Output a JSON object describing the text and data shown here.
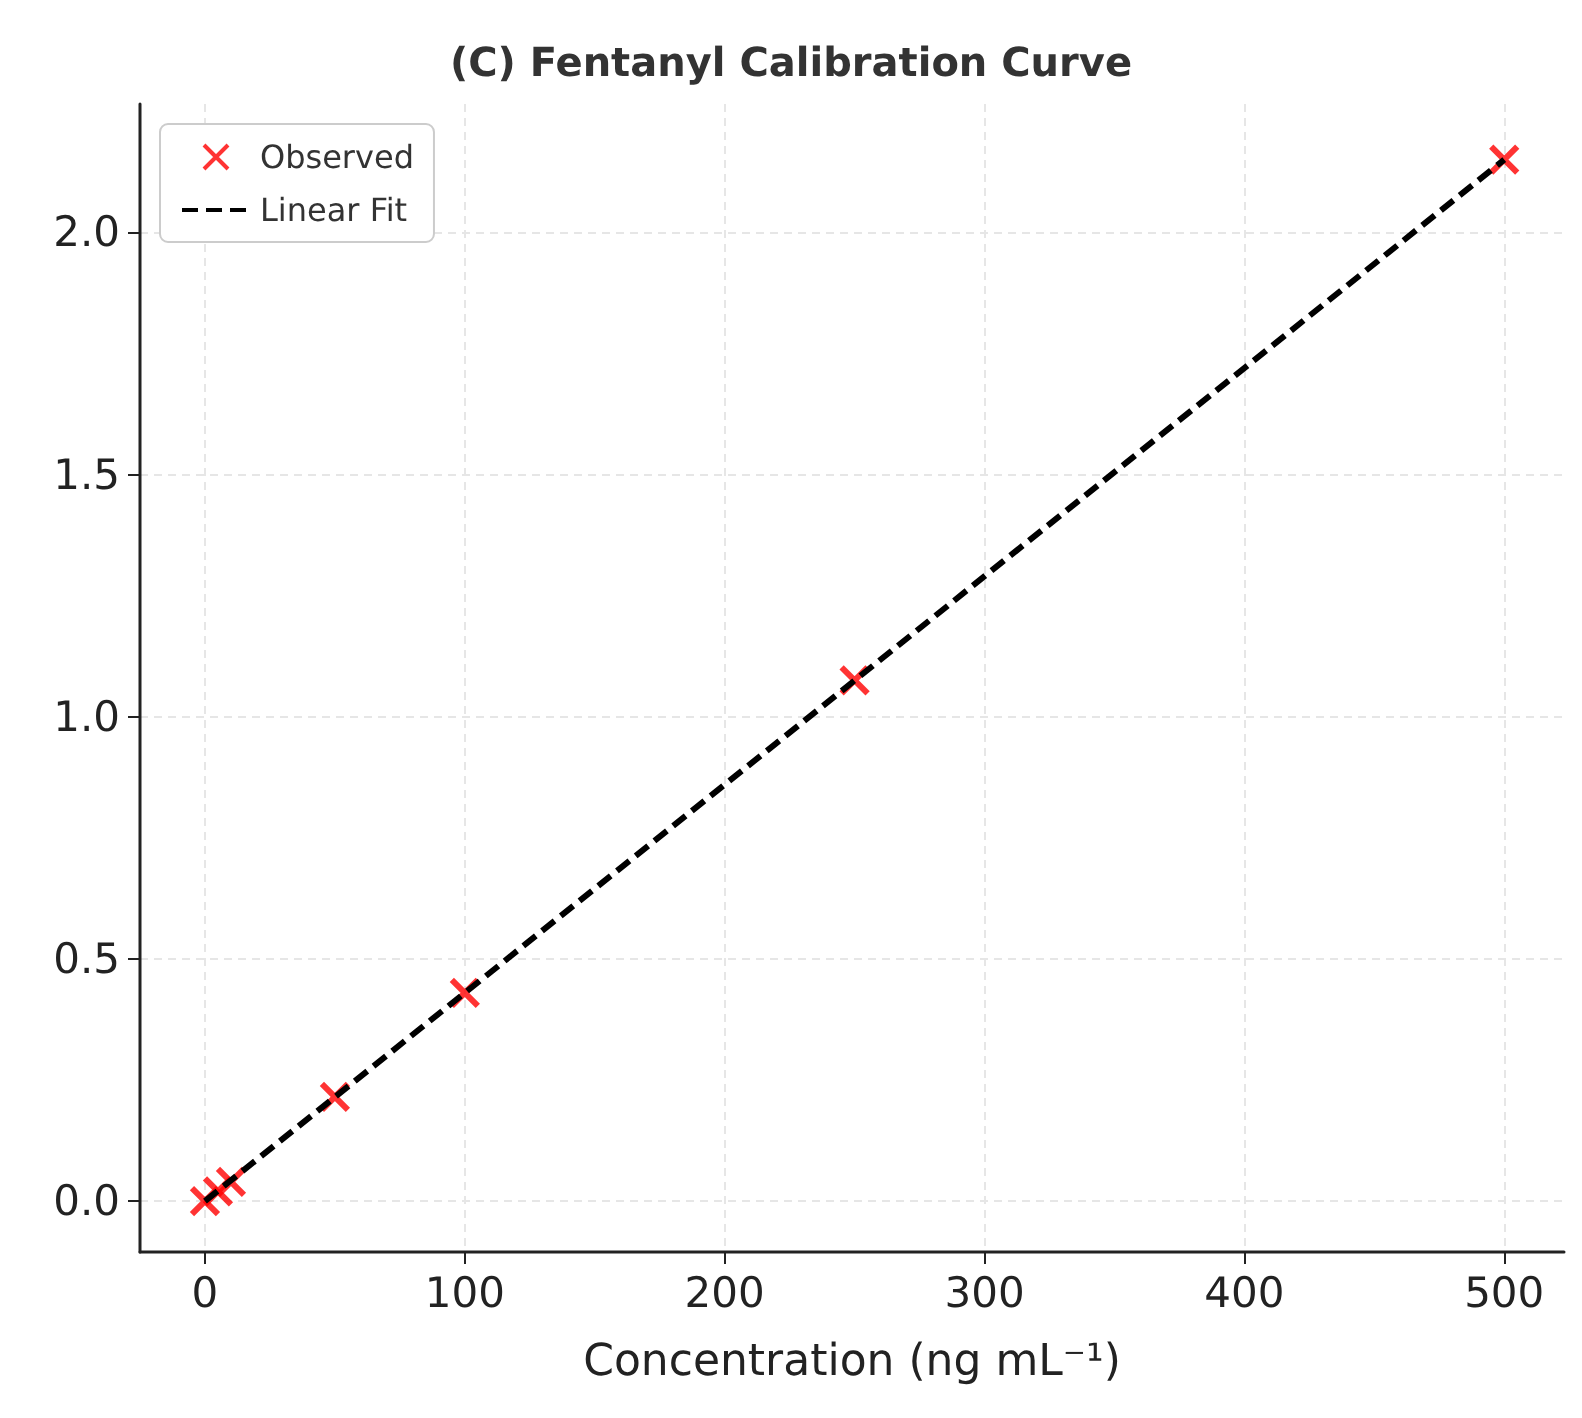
{
  "chart_data": {
    "type": "scatter",
    "title": "(C) Fentanyl Calibration Curve",
    "xlabel": "Concentration (ng mL⁻¹)",
    "series": [
      {
        "name": "Observed",
        "color": "#ff0000",
        "marker": "cross",
        "x": [
          0,
          5,
          10,
          50,
          100,
          250,
          500
        ],
        "values": [
          0.0,
          0.02,
          0.04,
          0.215,
          0.43,
          1.075,
          2.15
        ]
      },
      {
        "name": "Linear Fit",
        "type": "line",
        "color": "#000000",
        "line_style": "dashed",
        "marker": "none",
        "x": [
          0,
          500
        ],
        "values": [
          0.0,
          2.15
        ]
      }
    ],
    "xlim": [
      -25,
      523
    ],
    "xticks": [
      0,
      100,
      200,
      300,
      400,
      500
    ],
    "ylim": [
      -0.105,
      2.265
    ],
    "yticks": [
      {
        "value": 0,
        "label": "0.0"
      },
      {
        "value": 0.5,
        "label": "0.5"
      },
      {
        "value": 1,
        "label": "1.0"
      },
      {
        "value": 1.5,
        "label": "1.5"
      },
      {
        "value": 2,
        "label": "2.0"
      }
    ],
    "grid": true,
    "legend": "top left"
  }
}
